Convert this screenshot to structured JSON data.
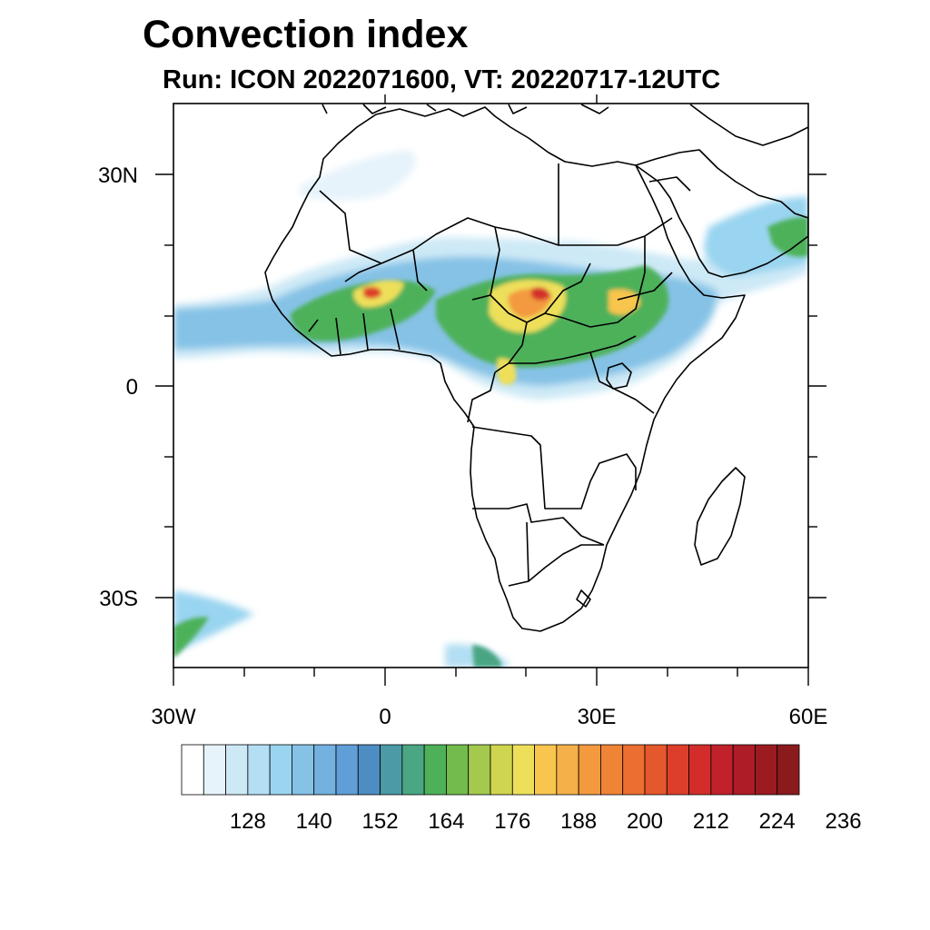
{
  "title": "Convection index",
  "subtitle": "Run: ICON 2022071600,  VT: 20220717-12UTC",
  "map": {
    "region": "Africa",
    "lon_range": [
      -30,
      60
    ],
    "lat_range": [
      -40,
      40
    ],
    "lat_tick_labels": [
      "30N",
      "0",
      "30S"
    ],
    "lat_tick_values": [
      30,
      0,
      -30
    ],
    "lon_tick_labels": [
      "30W",
      "0",
      "30E",
      "60E"
    ],
    "lon_tick_values": [
      -30,
      0,
      30,
      60
    ]
  },
  "colorbar": {
    "labels": [
      "128",
      "140",
      "152",
      "164",
      "176",
      "188",
      "200",
      "212",
      "224",
      "236"
    ],
    "colors": [
      "#ffffff",
      "#e6f3fb",
      "#cde9f6",
      "#b3def3",
      "#99d4f0",
      "#85c2e6",
      "#72b1e0",
      "#5f9ed7",
      "#4d8dc3",
      "#4b9aa5",
      "#4aa683",
      "#4eb15a",
      "#72bb4c",
      "#a4c94e",
      "#cfd54e",
      "#eedf5a",
      "#f8c54e",
      "#f5b04a",
      "#f39a3f",
      "#ef8436",
      "#ec6e30",
      "#e5572c",
      "#dd3e2b",
      "#d32d2b",
      "#c0212a",
      "#ad1c27",
      "#9b1b21",
      "#8b1a1d"
    ]
  }
}
